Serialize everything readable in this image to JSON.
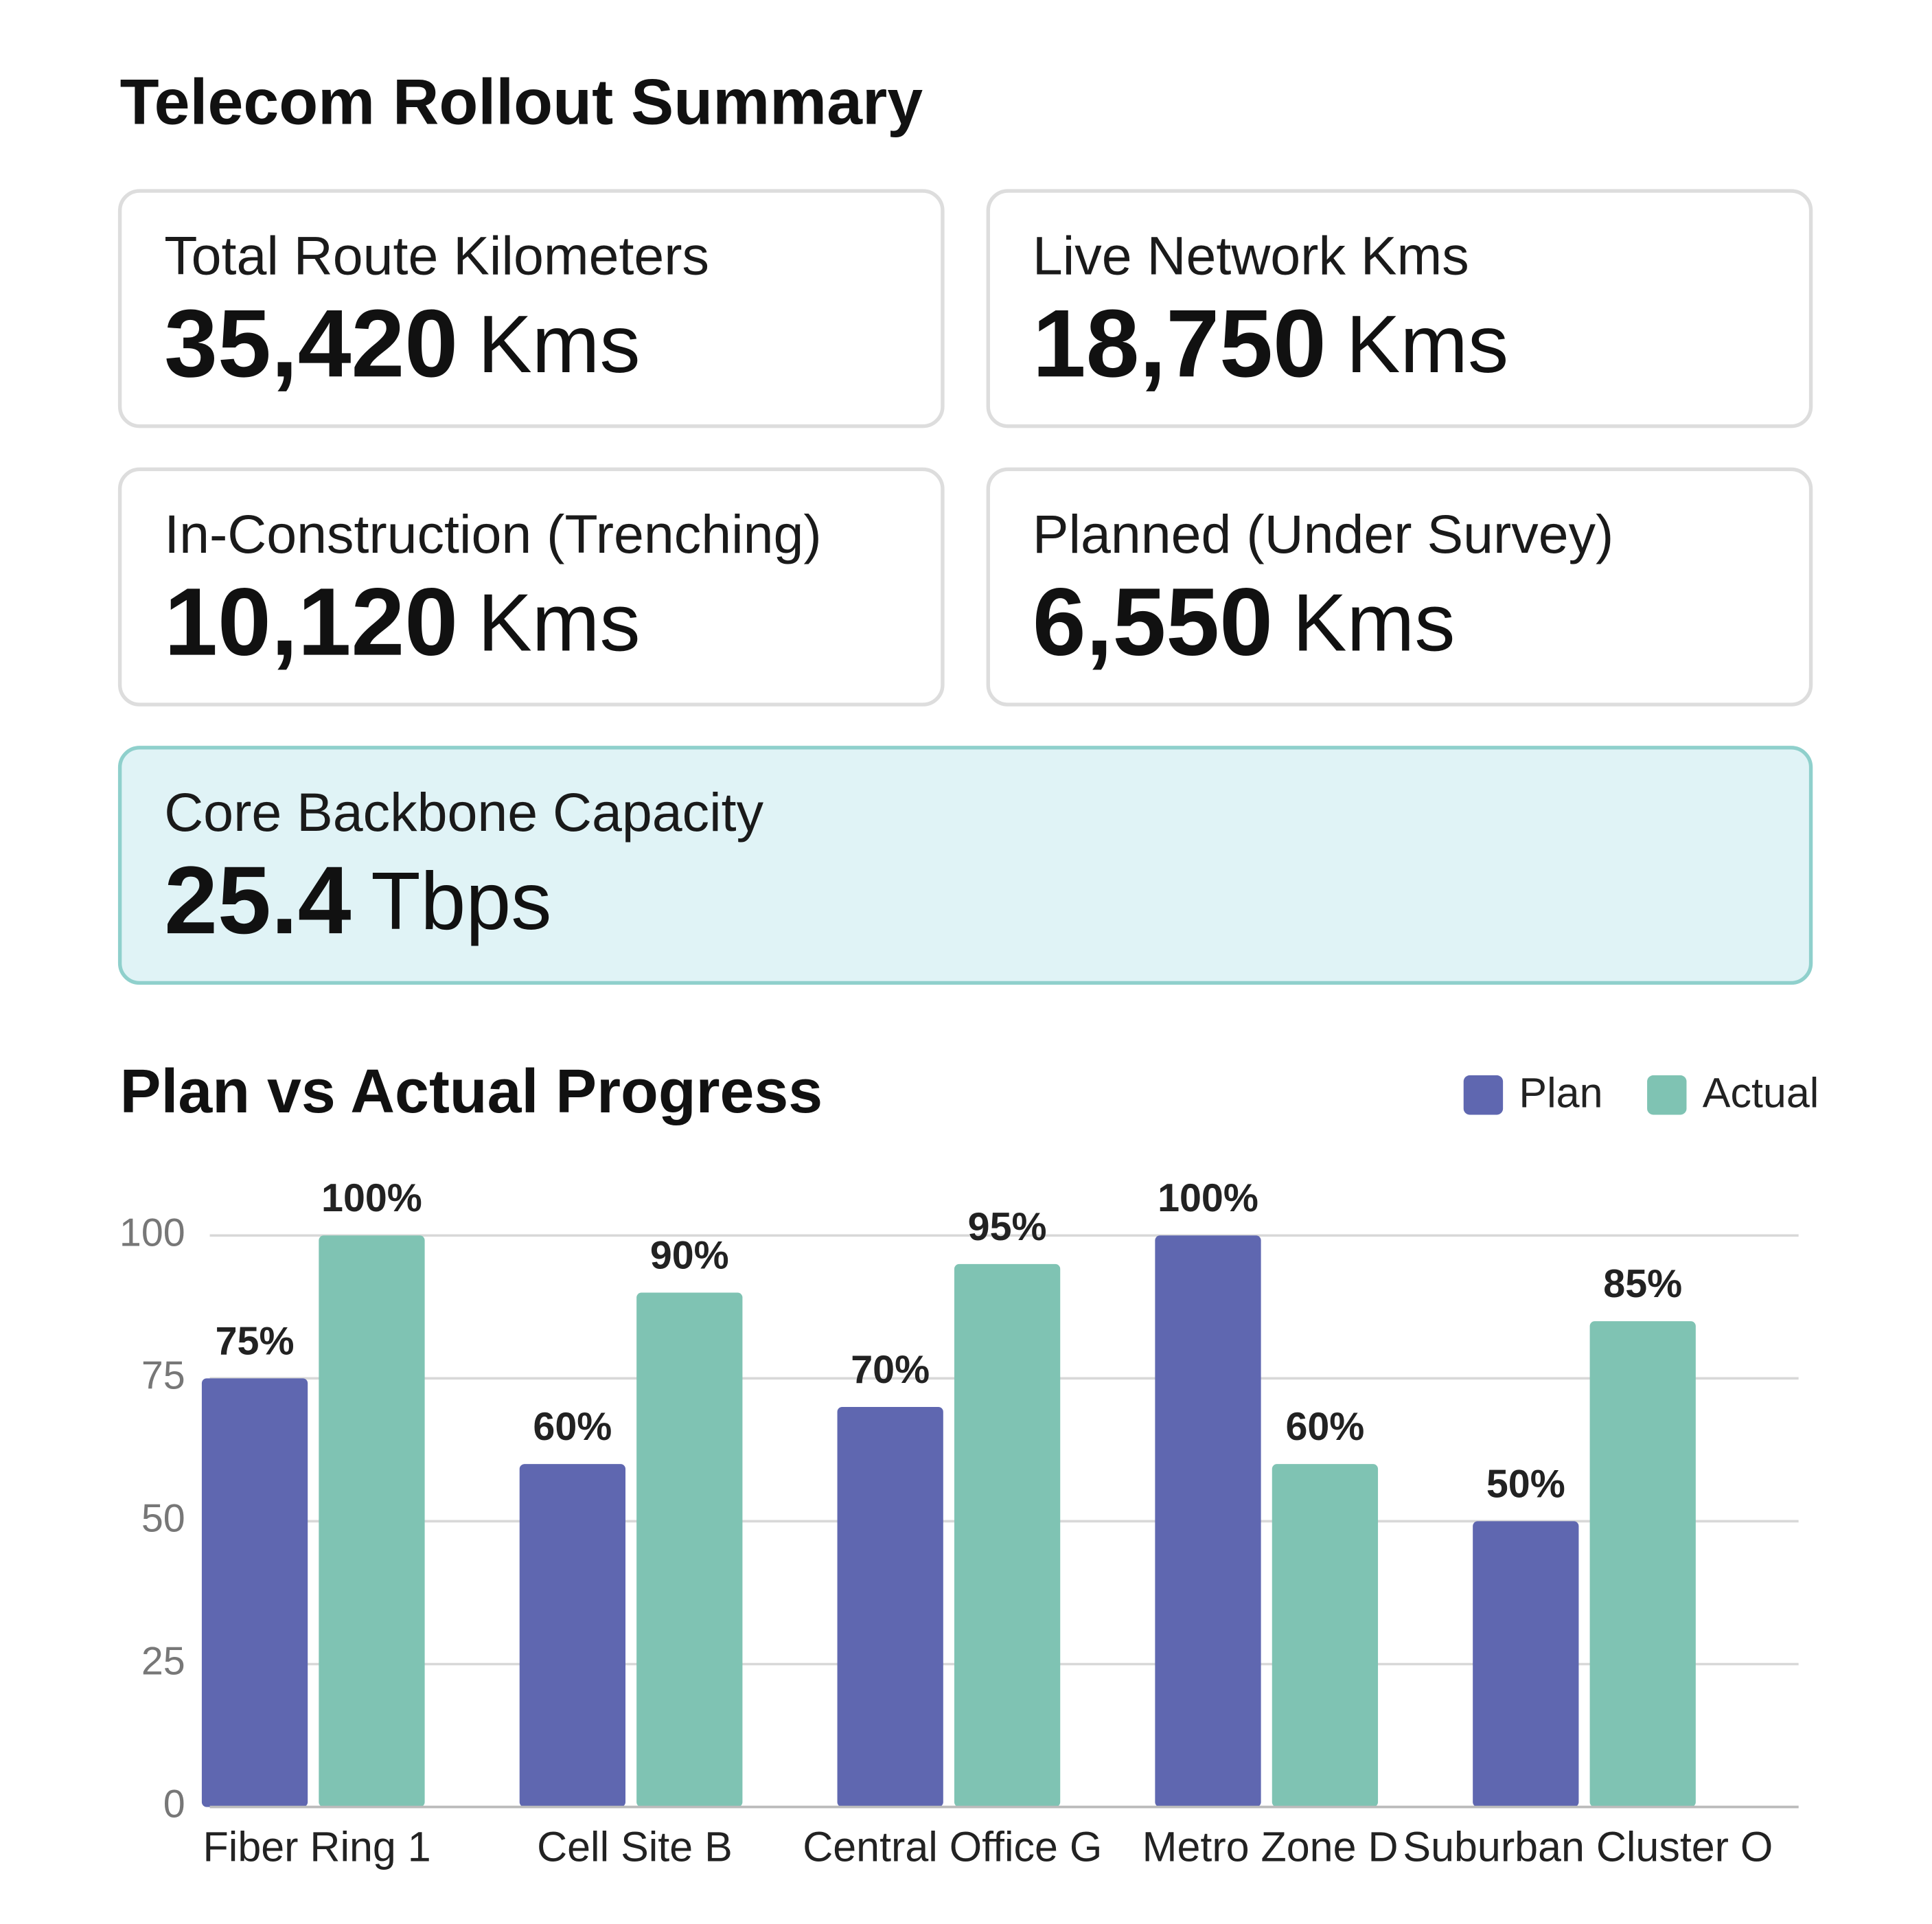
{
  "title": "Telecom Rollout Summary",
  "cards": [
    {
      "label": "Total Route Kilometers",
      "value": "35,420",
      "unit": "Kms"
    },
    {
      "label": "Live Network Kms",
      "value": "18,750",
      "unit": "Kms"
    },
    {
      "label": "In-Construction (Trenching)",
      "value": "10,120",
      "unit": "Kms"
    },
    {
      "label": "Planned (Under Survey)",
      "value": "6,550",
      "unit": "Kms"
    },
    {
      "label": "Core Backbone Capacity",
      "value": "25.4",
      "unit": "Tbps"
    }
  ],
  "chart_data": {
    "type": "bar",
    "title": "Plan vs Actual Progress",
    "categories": [
      "Fiber Ring 1",
      "Cell Site B",
      "Central Office G",
      "Metro Zone D",
      "Suburban Cluster O"
    ],
    "series": [
      {
        "name": "Plan",
        "color": "#5f67b0",
        "values": [
          75,
          60,
          70,
          100,
          50
        ],
        "value_labels": [
          "75%",
          "60%",
          "70%",
          "100%",
          "50%"
        ]
      },
      {
        "name": "Actual",
        "color": "#7fc3b3",
        "values": [
          100,
          90,
          95,
          60,
          85
        ],
        "value_labels": [
          "100%",
          "90%",
          "95%",
          "60%",
          "85%"
        ]
      }
    ],
    "ylim": [
      0,
      100
    ],
    "yticks": [
      0,
      25,
      50,
      75,
      100
    ],
    "grid": true,
    "legend": "top-right"
  }
}
